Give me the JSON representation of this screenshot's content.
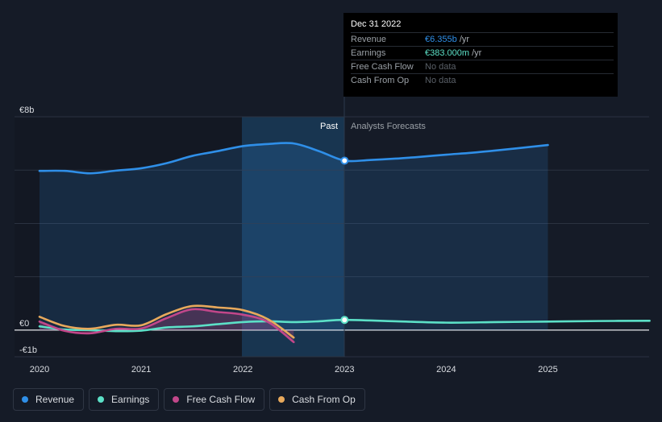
{
  "tooltip": {
    "date": "Dec 31 2022",
    "rows": [
      {
        "label": "Revenue",
        "value": "€6.355b",
        "unit": " /yr",
        "color": "#2f8fe8"
      },
      {
        "label": "Earnings",
        "value": "€383.000m",
        "unit": " /yr",
        "color": "#5ce0c7"
      },
      {
        "label": "Free Cash Flow",
        "value": "No data",
        "unit": "",
        "color": "#5a6068"
      },
      {
        "label": "Cash From Op",
        "value": "No data",
        "unit": "",
        "color": "#5a6068"
      }
    ]
  },
  "chart_data": {
    "type": "line",
    "ylim": [
      -1,
      8
    ],
    "y_tick_labels": [
      {
        "value": 8,
        "label": "€8b"
      },
      {
        "value": 0,
        "label": "€0"
      },
      {
        "value": -1,
        "label": "-€1b"
      }
    ],
    "x_tick_labels": [
      "2020",
      "2021",
      "2022",
      "2023",
      "2024",
      "2025"
    ],
    "divider_labels": {
      "past": "Past",
      "forecast": "Analysts Forecasts"
    },
    "past_end": 2023.0,
    "highlight_x": 2023.0,
    "series": [
      {
        "name": "Revenue",
        "color": "#2f8fe8",
        "area": true,
        "points": [
          [
            2020.0,
            5.97
          ],
          [
            2020.25,
            5.97
          ],
          [
            2020.5,
            5.88
          ],
          [
            2020.75,
            5.98
          ],
          [
            2021.0,
            6.07
          ],
          [
            2021.25,
            6.26
          ],
          [
            2021.5,
            6.53
          ],
          [
            2021.75,
            6.71
          ],
          [
            2022.0,
            6.9
          ],
          [
            2022.25,
            6.98
          ],
          [
            2022.5,
            7.0
          ],
          [
            2022.75,
            6.71
          ],
          [
            2023.0,
            6.355
          ],
          [
            2023.25,
            6.38
          ],
          [
            2023.5,
            6.43
          ],
          [
            2023.75,
            6.5
          ],
          [
            2024.0,
            6.58
          ],
          [
            2024.25,
            6.65
          ],
          [
            2024.5,
            6.74
          ],
          [
            2024.75,
            6.84
          ],
          [
            2025.0,
            6.94
          ]
        ]
      },
      {
        "name": "Earnings",
        "color": "#5ce0c7",
        "area": false,
        "points": [
          [
            2020.0,
            0.14
          ],
          [
            2020.25,
            0.02
          ],
          [
            2020.5,
            0.0
          ],
          [
            2020.75,
            -0.04
          ],
          [
            2021.0,
            -0.02
          ],
          [
            2021.25,
            0.1
          ],
          [
            2021.5,
            0.14
          ],
          [
            2021.75,
            0.22
          ],
          [
            2022.0,
            0.3
          ],
          [
            2022.25,
            0.33
          ],
          [
            2022.5,
            0.3
          ],
          [
            2022.75,
            0.33
          ],
          [
            2023.0,
            0.383
          ],
          [
            2023.5,
            0.33
          ],
          [
            2024.0,
            0.28
          ],
          [
            2024.5,
            0.3
          ],
          [
            2025.0,
            0.32
          ],
          [
            2025.5,
            0.34
          ],
          [
            2026.0,
            0.35
          ]
        ]
      },
      {
        "name": "Free Cash Flow",
        "color": "#c2478a",
        "area": true,
        "points": [
          [
            2020.0,
            0.32
          ],
          [
            2020.25,
            -0.03
          ],
          [
            2020.5,
            -0.12
          ],
          [
            2020.75,
            0.05
          ],
          [
            2021.0,
            0.06
          ],
          [
            2021.25,
            0.45
          ],
          [
            2021.5,
            0.78
          ],
          [
            2021.75,
            0.68
          ],
          [
            2022.0,
            0.58
          ],
          [
            2022.25,
            0.3
          ],
          [
            2022.5,
            -0.45
          ]
        ]
      },
      {
        "name": "Cash From Op",
        "color": "#e8a95c",
        "area": false,
        "points": [
          [
            2020.0,
            0.5
          ],
          [
            2020.25,
            0.15
          ],
          [
            2020.5,
            0.05
          ],
          [
            2020.75,
            0.2
          ],
          [
            2021.0,
            0.18
          ],
          [
            2021.25,
            0.6
          ],
          [
            2021.5,
            0.9
          ],
          [
            2021.75,
            0.85
          ],
          [
            2022.0,
            0.75
          ],
          [
            2022.25,
            0.4
          ],
          [
            2022.5,
            -0.28
          ]
        ]
      }
    ]
  }
}
